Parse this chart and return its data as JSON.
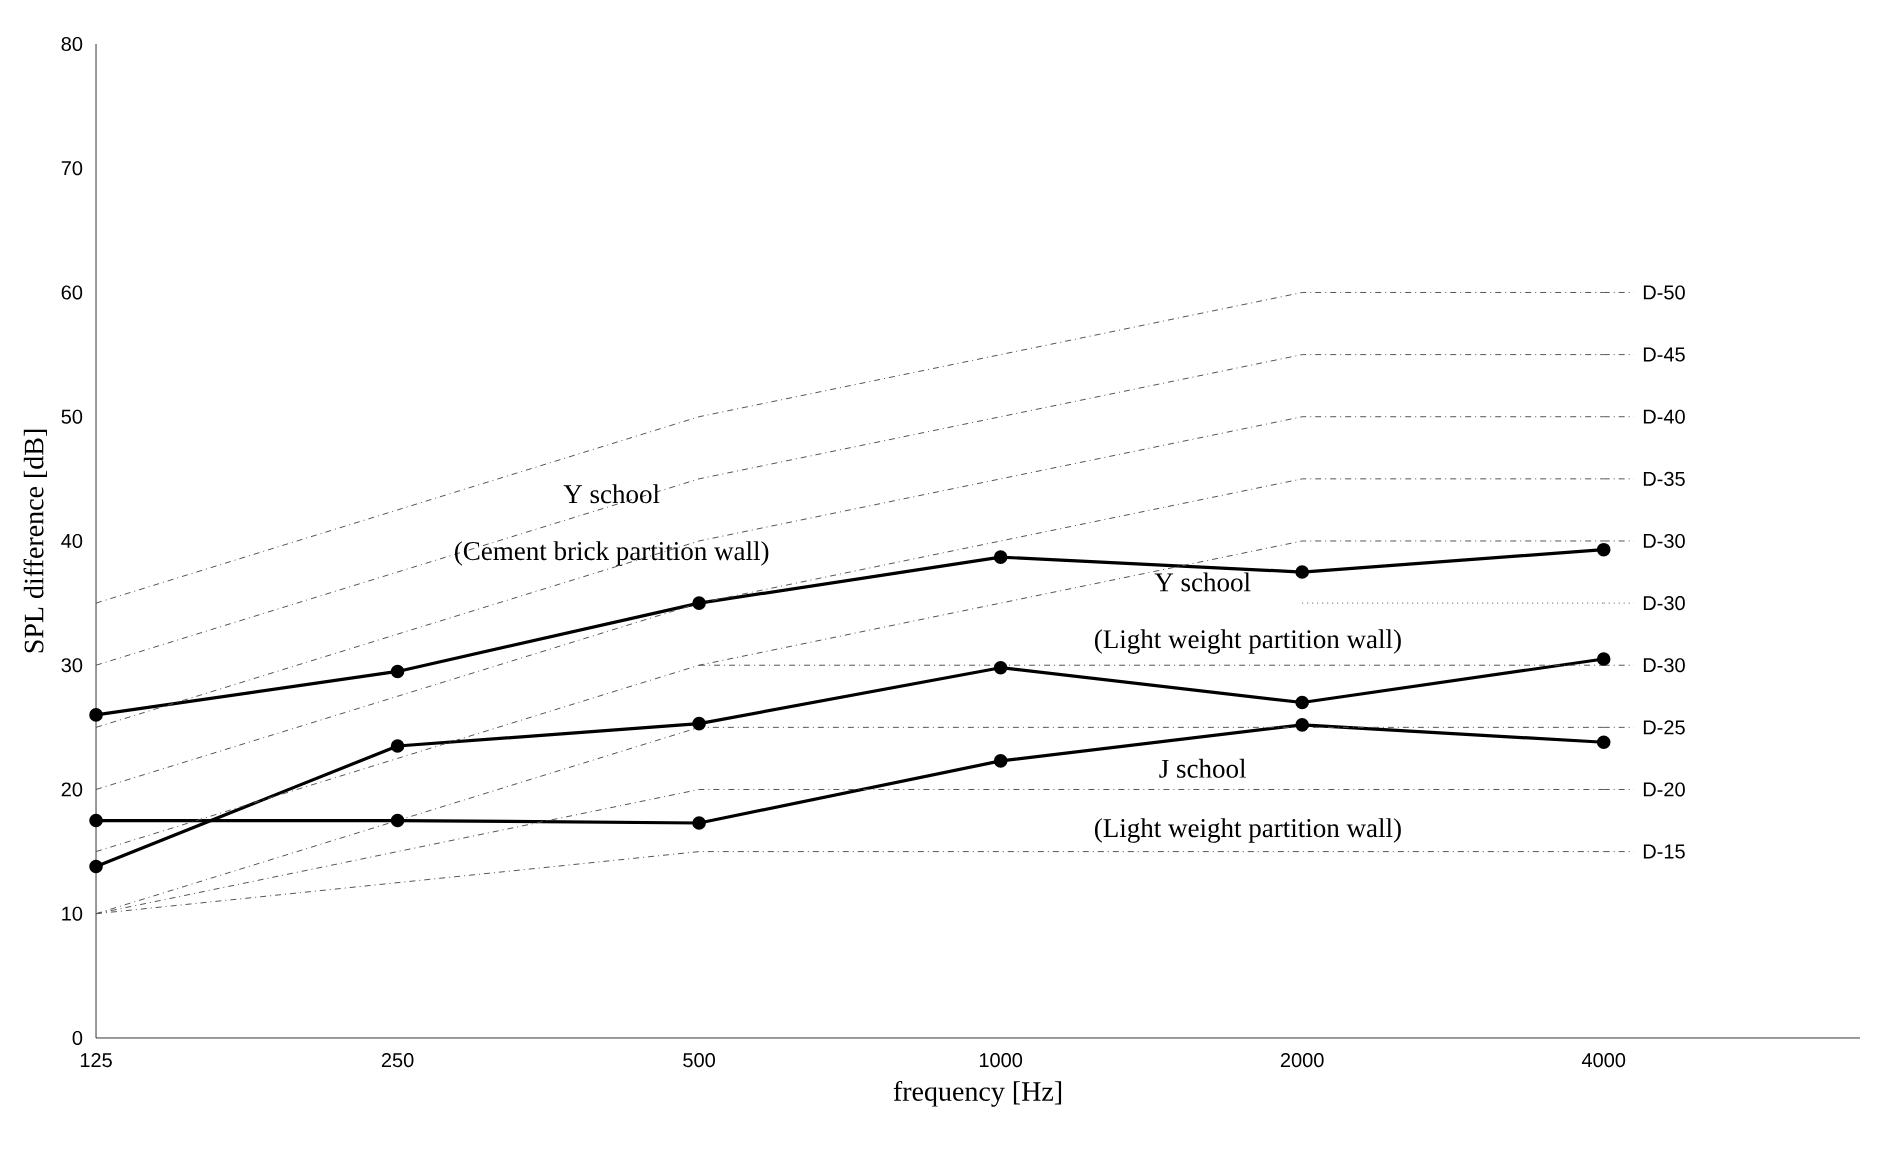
{
  "chart_data": {
    "type": "line",
    "xlabel": "frequency [Hz]",
    "ylabel": "SPL difference  [dB]",
    "categories": [
      "125",
      "250",
      "500",
      "1000",
      "2000",
      "4000"
    ],
    "ylim": [
      0,
      80
    ],
    "yticks": [
      0,
      10,
      20,
      30,
      40,
      50,
      60,
      70,
      80
    ],
    "marker": "circle",
    "grid": false,
    "legend": "right",
    "series": [
      {
        "color": "#000000",
        "values": [
          26,
          29.5,
          35,
          38.7,
          37.5,
          39.3
        ]
      },
      {
        "color": "#000000",
        "values": [
          13.8,
          23.5,
          25.3,
          29.8,
          27,
          30.5
        ]
      },
      {
        "color": "#000000",
        "values": [
          17.5,
          17.5,
          17.3,
          22.3,
          25.2,
          23.8
        ]
      },
      {
        "name": "D-50",
        "color": "#555555",
        "line_style": "dashed",
        "marker": "none",
        "values": [
          35,
          42.5,
          50,
          55,
          60,
          60
        ]
      },
      {
        "name": "D-45",
        "color": "#555555",
        "line_style": "dashed",
        "marker": "none",
        "values": [
          30,
          37.5,
          45,
          50,
          55,
          55
        ]
      },
      {
        "name": "D-40",
        "color": "#555555",
        "line_style": "dashed",
        "marker": "none",
        "values": [
          25,
          32.5,
          40,
          45,
          50,
          50
        ]
      },
      {
        "name": "D-35",
        "color": "#555555",
        "line_style": "dashed",
        "marker": "none",
        "values": [
          20,
          27.5,
          35,
          40,
          45,
          45
        ]
      },
      {
        "name": "D-30",
        "color": "#555555",
        "line_style": "dashed",
        "marker": "none",
        "values": [
          15,
          22.5,
          30,
          35,
          40,
          40
        ]
      },
      {
        "name": "D-30",
        "color": "#555555",
        "line_style": "dotted",
        "marker": "none",
        "values": [
          null,
          null,
          null,
          null,
          35,
          35
        ]
      },
      {
        "name": "D-30",
        "color": "#555555",
        "line_style": "dashed",
        "marker": "none",
        "values": [
          null,
          null,
          30,
          30,
          30,
          30
        ]
      },
      {
        "name": "D-25",
        "color": "#555555",
        "line_style": "dashed",
        "marker": "none",
        "values": [
          10,
          17.5,
          25,
          25,
          25,
          25
        ]
      },
      {
        "name": "D-20",
        "color": "#555555",
        "line_style": "dashed",
        "marker": "none",
        "values": [
          10,
          15,
          20,
          20,
          20,
          20
        ]
      },
      {
        "name": "D-15",
        "color": "#555555",
        "line_style": "dashed",
        "marker": "none",
        "values": [
          10,
          12.5,
          15,
          15,
          15,
          15
        ]
      }
    ],
    "annotations": [
      "Y school",
      "(Cement brick partition wall)",
      "Y school",
      "(Light weight partition wall)",
      "J school",
      "(Light weight partition wall)"
    ]
  }
}
